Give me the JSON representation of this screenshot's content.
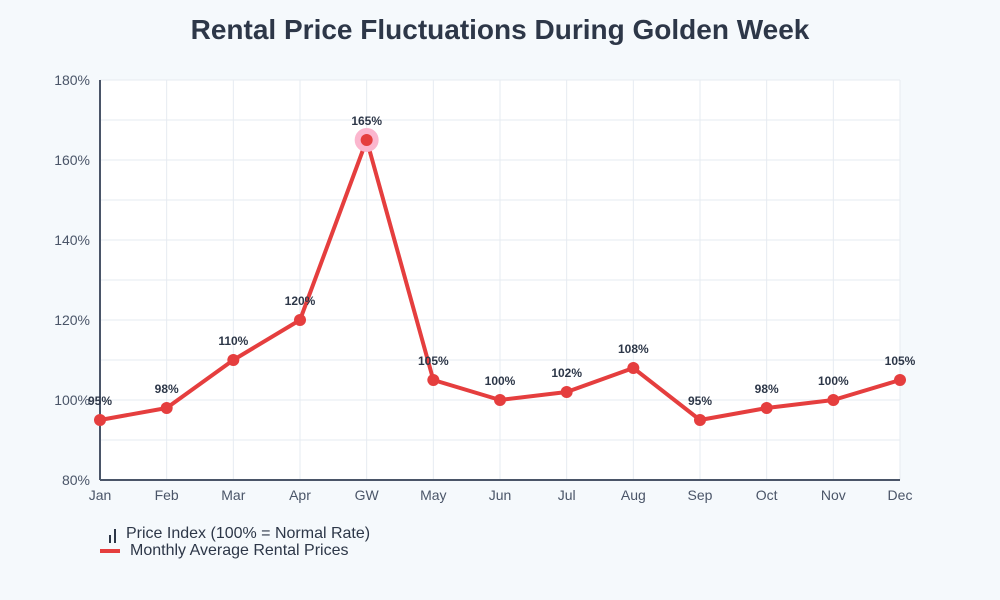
{
  "chart_data": {
    "type": "line",
    "title": "Rental Price Fluctuations During Golden Week",
    "categories": [
      "Jan",
      "Feb",
      "Mar",
      "Apr",
      "GW",
      "May",
      "Jun",
      "Jul",
      "Aug",
      "Sep",
      "Oct",
      "Nov",
      "Dec"
    ],
    "series": [
      {
        "name": "Monthly Average Rental Prices",
        "values": [
          95,
          98,
          110,
          120,
          165,
          105,
          100,
          102,
          108,
          95,
          98,
          100,
          105
        ],
        "color": "#e53e3e"
      }
    ],
    "data_labels": [
      "95%",
      "98%",
      "110%",
      "120%",
      "165%",
      "105%",
      "100%",
      "102%",
      "108%",
      "95%",
      "98%",
      "100%",
      "105%"
    ],
    "highlight": {
      "category": "GW",
      "color": "#fbb6ce"
    },
    "ylim": [
      80,
      180
    ],
    "yticks": [
      80,
      100,
      120,
      140,
      160,
      180
    ],
    "ytick_labels": [
      "80%",
      "100%",
      "120%",
      "140%",
      "160%",
      "180%"
    ],
    "grid": true,
    "legend_placement": "bottom-left",
    "legend": [
      {
        "label": "Price Index (100% = Normal Rate)",
        "icon": "bar-chart-icon"
      },
      {
        "label": "Monthly Average Rental Prices",
        "icon": "line-swatch",
        "color": "#e53e3e"
      }
    ]
  }
}
